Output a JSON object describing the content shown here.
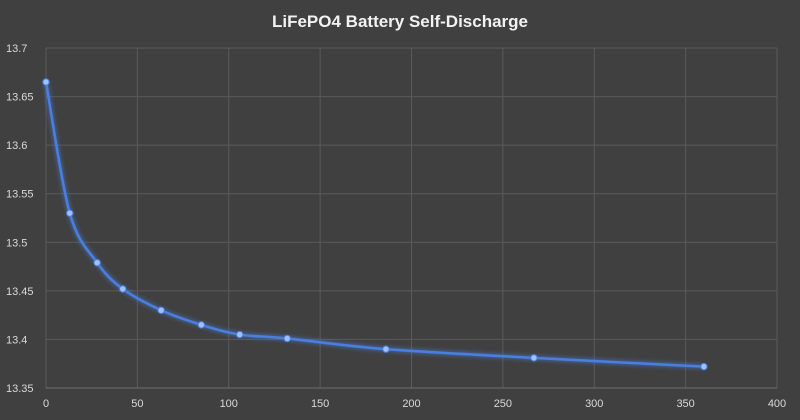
{
  "chart_data": {
    "type": "line",
    "title": "LiFePO4 Battery Self-Discharge",
    "xlabel": "",
    "ylabel": "",
    "xlim": [
      0,
      400
    ],
    "ylim": [
      13.35,
      13.7
    ],
    "x_ticks": [
      0,
      50,
      100,
      150,
      200,
      250,
      300,
      350,
      400
    ],
    "y_ticks": [
      13.35,
      13.4,
      13.45,
      13.5,
      13.55,
      13.6,
      13.65,
      13.7
    ],
    "y_tick_labels": [
      "13.35",
      "13.4",
      "13.45",
      "13.5",
      "13.55",
      "13.6",
      "13.65",
      "13.7"
    ],
    "grid": true,
    "legend": "none",
    "series": [
      {
        "color": "#4a7fe0",
        "smooth": true,
        "x": [
          0,
          13,
          28,
          42,
          63,
          85,
          106,
          132,
          186,
          267,
          360
        ],
        "y": [
          13.665,
          13.53,
          13.479,
          13.452,
          13.43,
          13.415,
          13.405,
          13.401,
          13.39,
          13.381,
          13.372
        ]
      }
    ]
  }
}
